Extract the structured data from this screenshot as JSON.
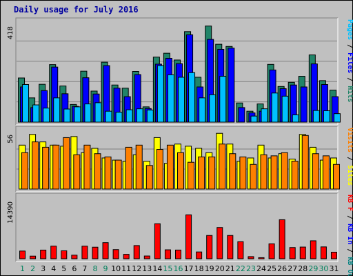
{
  "title": "Daily usage for July 2016",
  "colors": {
    "hits": "#218468",
    "files": "#0000ff",
    "pages": "#00c0ff",
    "visits": "#ffff00",
    "sites": "#ff8000",
    "kb_in": "#0000ff",
    "kb_out": "#008080",
    "kb_f": "#ff0000",
    "weekend_day": "#00805c",
    "weekday_day": "#000000",
    "panel_bg": "#c0c0c0",
    "gridline": "#808080"
  },
  "chart_data": [
    {
      "type": "bar",
      "title": "Daily usage for July 2016",
      "ylabel_parts": [
        "Pages",
        "/",
        "Files",
        "/",
        "Hits"
      ],
      "ymax_label": "418",
      "ylim": [
        0,
        418
      ],
      "categories": [
        "1",
        "2",
        "3",
        "4",
        "5",
        "6",
        "7",
        "8",
        "9",
        "10",
        "11",
        "12",
        "13",
        "14",
        "15",
        "16",
        "17",
        "18",
        "19",
        "20",
        "21",
        "22",
        "23",
        "24",
        "25",
        "26",
        "27",
        "28",
        "29",
        "30",
        "31"
      ],
      "series": [
        {
          "name": "Hits",
          "values": [
            182,
            100,
            156,
            237,
            149,
            73,
            210,
            128,
            247,
            153,
            140,
            209,
            63,
            268,
            284,
            256,
            373,
            185,
            396,
            321,
            312,
            79,
            45,
            75,
            238,
            147,
            164,
            189,
            277,
            171,
            132
          ]
        },
        {
          "name": "Files",
          "values": [
            145,
            60,
            130,
            227,
            117,
            65,
            183,
            116,
            233,
            140,
            105,
            196,
            56,
            239,
            263,
            241,
            360,
            145,
            341,
            300,
            305,
            60,
            38,
            45,
            215,
            138,
            153,
            145,
            240,
            155,
            105
          ]
        },
        {
          "name": "Pages",
          "values": [
            155,
            71,
            58,
            100,
            54,
            63,
            75,
            80,
            45,
            41,
            51,
            55,
            50,
            233,
            195,
            185,
            204,
            100,
            113,
            189,
            0,
            0,
            25,
            55,
            120,
            107,
            30,
            0,
            48,
            47,
            35
          ]
        }
      ]
    },
    {
      "type": "bar",
      "ylabel_parts": [
        "Visits",
        "/",
        "Sites"
      ],
      "ymax_label": "56",
      "ylim": [
        0,
        56
      ],
      "categories": [
        "1",
        "2",
        "3",
        "4",
        "5",
        "6",
        "7",
        "8",
        "9",
        "10",
        "11",
        "12",
        "13",
        "14",
        "15",
        "16",
        "17",
        "18",
        "19",
        "20",
        "21",
        "22",
        "23",
        "24",
        "25",
        "26",
        "27",
        "28",
        "29",
        "30",
        "31"
      ],
      "series": [
        {
          "name": "Visits",
          "values": [
            41,
            51,
            44,
            41,
            40,
            49,
            34,
            38,
            29,
            27,
            26,
            32,
            26,
            48,
            24,
            42,
            40,
            38,
            34,
            52,
            42,
            26,
            29,
            41,
            29,
            33,
            28,
            51,
            39,
            27,
            29
          ]
        },
        {
          "name": "Sites",
          "values": [
            34,
            44,
            39,
            41,
            48,
            32,
            41,
            33,
            30,
            27,
            39,
            41,
            22,
            37,
            41,
            34,
            25,
            30,
            30,
            42,
            33,
            30,
            23,
            32,
            31,
            34,
            26,
            50,
            33,
            31,
            23
          ]
        }
      ]
    },
    {
      "type": "bar",
      "ylabel_parts": [
        "KB F",
        "/",
        "KB In",
        "/",
        "KB Out"
      ],
      "ymax_label": "14390",
      "ylim": [
        0,
        14390
      ],
      "categories": [
        "1",
        "2",
        "3",
        "4",
        "5",
        "6",
        "7",
        "8",
        "9",
        "10",
        "11",
        "12",
        "13",
        "14",
        "15",
        "16",
        "17",
        "18",
        "19",
        "20",
        "21",
        "22",
        "23",
        "24",
        "25",
        "26",
        "27",
        "28",
        "29",
        "30",
        "31"
      ],
      "series": [
        {
          "name": "KB F",
          "values": [
            1770,
            600,
            1990,
            2900,
            1830,
            830,
            2890,
            2650,
            3690,
            2100,
            1010,
            3020,
            630,
            8030,
            2050,
            2000,
            10070,
            1560,
            5340,
            7160,
            5340,
            3920,
            490,
            250,
            3430,
            8950,
            2570,
            2680,
            4120,
            2720,
            1510
          ]
        }
      ]
    }
  ]
}
